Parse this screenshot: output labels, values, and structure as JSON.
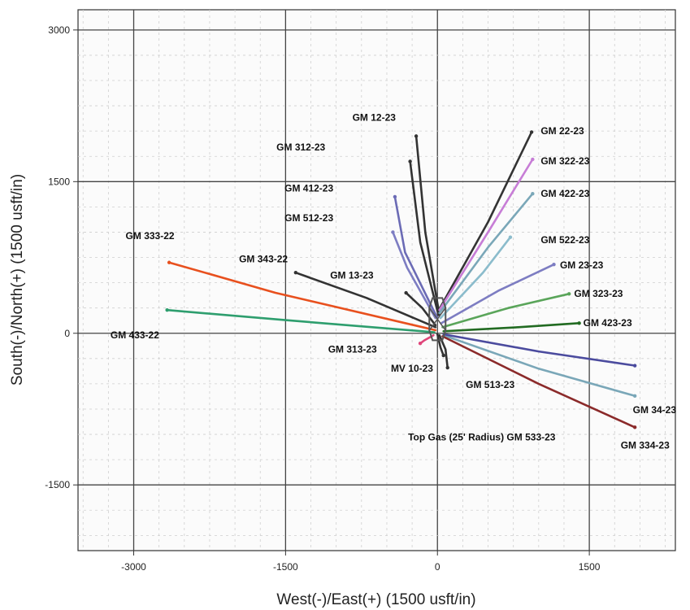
{
  "chart_data": {
    "type": "line",
    "title": "",
    "xlabel": "West(-)/East(+) (1500 usft/in)",
    "ylabel": "South(-)/North(+) (1500 usft/in)",
    "xlim": [
      -3550,
      2350
    ],
    "ylim": [
      -2150,
      3200
    ],
    "x_ticks": [
      {
        "v": -3000,
        "label": "-3000"
      },
      {
        "v": -1500,
        "label": "-1500"
      },
      {
        "v": 0,
        "label": "0"
      },
      {
        "v": 1500,
        "label": "1500"
      }
    ],
    "y_ticks": [
      {
        "v": 3000,
        "label": "3000"
      },
      {
        "v": 1500,
        "label": "1500"
      },
      {
        "v": 0,
        "label": "0"
      },
      {
        "v": -1500,
        "label": "-1500"
      }
    ],
    "grid": true,
    "pad": {
      "x": 0,
      "y": 140,
      "color": "#555555"
    },
    "series": [
      {
        "name": "GM 12-23",
        "color": "#333333",
        "points": [
          [
            20,
            180
          ],
          [
            -120,
            1000
          ],
          [
            -210,
            1950
          ]
        ]
      },
      {
        "name": "GM 312-23",
        "color": "#333333",
        "points": [
          [
            10,
            180
          ],
          [
            -170,
            900
          ],
          [
            -270,
            1700
          ]
        ]
      },
      {
        "name": "GM 412-23",
        "color": "#6b6bb5",
        "points": [
          [
            0,
            150
          ],
          [
            -320,
            800
          ],
          [
            -420,
            1350
          ]
        ]
      },
      {
        "name": "GM 512-23",
        "color": "#7d7dc2",
        "points": [
          [
            -20,
            150
          ],
          [
            -300,
            650
          ],
          [
            -440,
            1000
          ]
        ]
      },
      {
        "name": "GM 333-22",
        "color": "#e8501e",
        "points": [
          [
            -20,
            30
          ],
          [
            -1600,
            400
          ],
          [
            -2650,
            700
          ]
        ]
      },
      {
        "name": "GM 343-22",
        "color": "#333333",
        "points": [
          [
            -20,
            60
          ],
          [
            -700,
            350
          ],
          [
            -1400,
            600
          ]
        ]
      },
      {
        "name": "GM 13-23",
        "color": "#333333",
        "points": [
          [
            -20,
            80
          ],
          [
            -150,
            250
          ],
          [
            -310,
            400
          ]
        ]
      },
      {
        "name": "GM 433-22",
        "color": "#2e9e6e",
        "points": [
          [
            -30,
            10
          ],
          [
            -1500,
            130
          ],
          [
            -2670,
            230
          ]
        ]
      },
      {
        "name": "GM 22-23",
        "color": "#333333",
        "points": [
          [
            20,
            240
          ],
          [
            500,
            1100
          ],
          [
            930,
            1990
          ]
        ]
      },
      {
        "name": "GM 322-23",
        "color": "#c77dd6",
        "points": [
          [
            20,
            230
          ],
          [
            500,
            1000
          ],
          [
            940,
            1720
          ]
        ]
      },
      {
        "name": "GM 422-23",
        "color": "#7aa7b8",
        "points": [
          [
            20,
            200
          ],
          [
            500,
            850
          ],
          [
            940,
            1380
          ]
        ]
      },
      {
        "name": "GM 522-23",
        "color": "#8bbccc",
        "points": [
          [
            30,
            150
          ],
          [
            450,
            600
          ],
          [
            720,
            950
          ]
        ]
      },
      {
        "name": "GM 23-23",
        "color": "#7d7dc2",
        "points": [
          [
            40,
            100
          ],
          [
            600,
            420
          ],
          [
            1150,
            680
          ]
        ]
      },
      {
        "name": "GM 323-23",
        "color": "#5aa55a",
        "points": [
          [
            50,
            60
          ],
          [
            700,
            250
          ],
          [
            1300,
            390
          ]
        ]
      },
      {
        "name": "GM 423-23",
        "color": "#226b22",
        "points": [
          [
            60,
            20
          ],
          [
            800,
            60
          ],
          [
            1400,
            100
          ]
        ]
      },
      {
        "name": "GM 34-23",
        "color": "#7aa7b8",
        "points": [
          [
            60,
            -20
          ],
          [
            1000,
            -350
          ],
          [
            1950,
            -620
          ]
        ]
      },
      {
        "name": "GM 334-23",
        "color": "#8b2a2a",
        "points": [
          [
            50,
            -30
          ],
          [
            1000,
            -500
          ],
          [
            1950,
            -930
          ]
        ]
      },
      {
        "name": "GM 533-23",
        "color": "#4b4b9e",
        "points": [
          [
            60,
            -10
          ],
          [
            1000,
            -180
          ],
          [
            1950,
            -320
          ]
        ]
      },
      {
        "name": "GM 513-23",
        "color": "#333333",
        "points": [
          [
            20,
            -20
          ],
          [
            80,
            -160
          ],
          [
            100,
            -340
          ]
        ]
      },
      {
        "name": "GM 313-23",
        "color": "#e0457a",
        "points": [
          [
            -40,
            -20
          ],
          [
            -130,
            -70
          ],
          [
            -170,
            -100
          ]
        ]
      },
      {
        "name": "MV 10-23",
        "color": "#333333",
        "points": [
          [
            0,
            -10
          ],
          [
            30,
            -140
          ],
          [
            60,
            -220
          ]
        ]
      }
    ],
    "labels": [
      {
        "text": "GM 12-23",
        "x": -840,
        "y": 2100
      },
      {
        "text": "GM 312-23",
        "x": -1590,
        "y": 1810
      },
      {
        "text": "GM 412-23",
        "x": -1510,
        "y": 1400
      },
      {
        "text": "GM 512-23",
        "x": -1510,
        "y": 1110
      },
      {
        "text": "GM 333-22",
        "x": -3080,
        "y": 930
      },
      {
        "text": "GM 343-22",
        "x": -1960,
        "y": 700
      },
      {
        "text": "GM 13-23",
        "x": -1060,
        "y": 540
      },
      {
        "text": "GM 433-22",
        "x": -3230,
        "y": -50
      },
      {
        "text": "GM 313-23",
        "x": -1080,
        "y": -190
      },
      {
        "text": "MV 10-23",
        "x": -460,
        "y": -380
      },
      {
        "text": "GM 22-23",
        "x": 1020,
        "y": 1970
      },
      {
        "text": "GM 322-23",
        "x": 1020,
        "y": 1670
      },
      {
        "text": "GM 422-23",
        "x": 1020,
        "y": 1350
      },
      {
        "text": "GM 522-23",
        "x": 1020,
        "y": 890
      },
      {
        "text": "GM 23-23",
        "x": 1210,
        "y": 640
      },
      {
        "text": "GM 323-23",
        "x": 1350,
        "y": 360
      },
      {
        "text": "GM 423-23",
        "x": 1440,
        "y": 70
      },
      {
        "text": "GM 513-23",
        "x": 280,
        "y": -540
      },
      {
        "text": "GM 34-23",
        "x": 1930,
        "y": -790
      },
      {
        "text": "Top Gas (25' Radius) GM 533-23",
        "x": -290,
        "y": -1060
      },
      {
        "text": "GM 334-23",
        "x": 1810,
        "y": -1140
      }
    ]
  }
}
